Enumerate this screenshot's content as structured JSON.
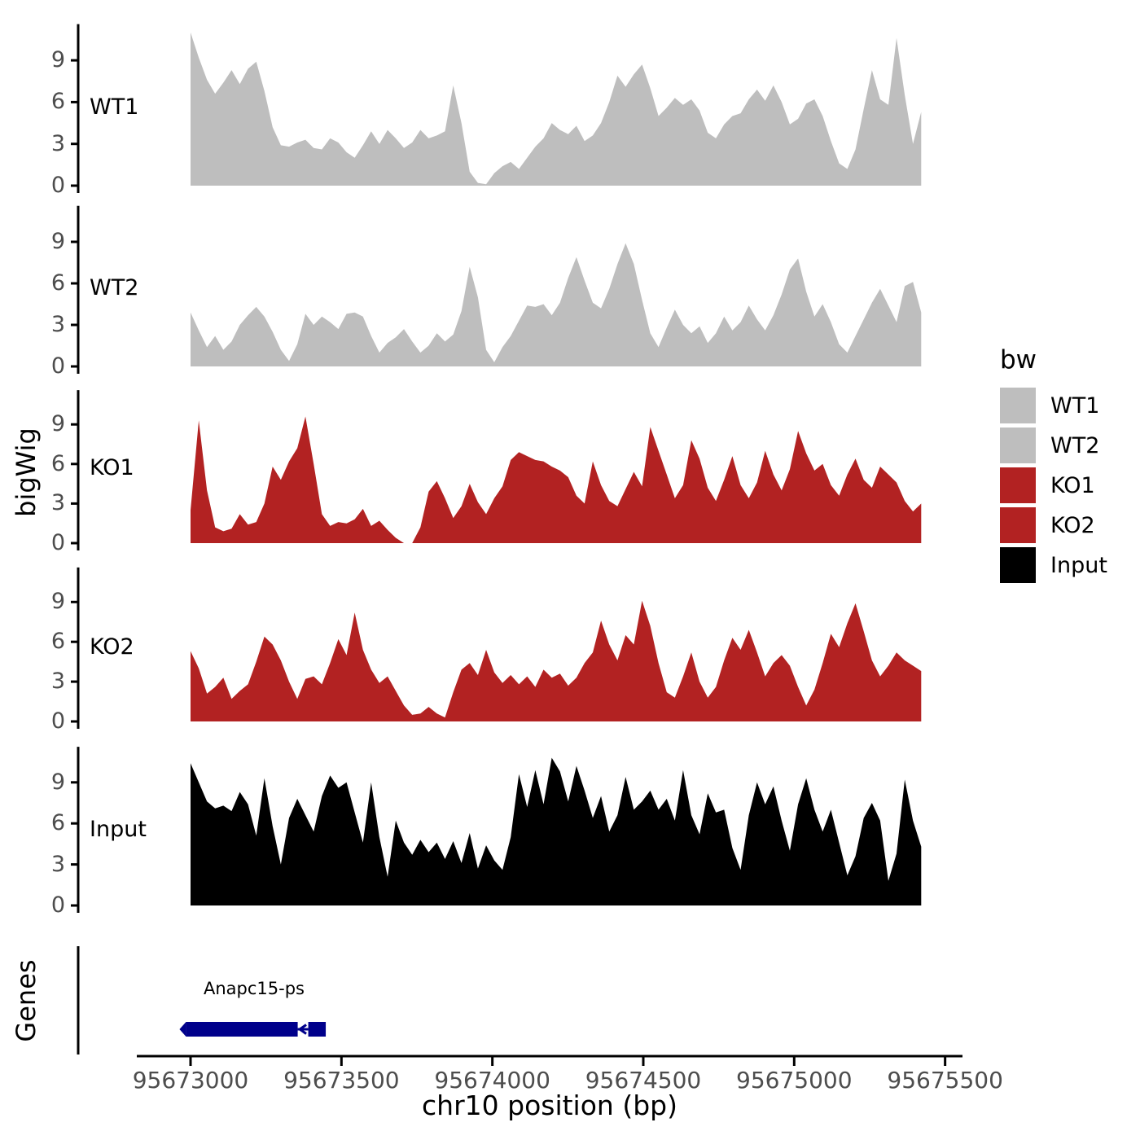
{
  "axes": {
    "y_title": "bigWig",
    "genes_title": "Genes",
    "x_title": "chr10 position (bp)",
    "y_ticks": [
      0,
      3,
      6,
      9
    ],
    "x_ticks_bp": [
      95673000,
      95673500,
      95674000,
      95674500,
      95675000,
      95675500
    ],
    "x_tick_labels": [
      "95673000",
      "95673500",
      "95674000",
      "95674500",
      "95675000",
      "95675500"
    ],
    "axis_line_color": "#000000",
    "tick_text_color": "#4d4d4d"
  },
  "legend": {
    "title": "bw",
    "entries": [
      {
        "label": "WT1",
        "color": "#BEBEBE"
      },
      {
        "label": "WT2",
        "color": "#BEBEBE"
      },
      {
        "label": "KO1",
        "color": "#B22222"
      },
      {
        "label": "KO2",
        "color": "#B22222"
      },
      {
        "label": "Input",
        "color": "#000000"
      }
    ]
  },
  "chart_data": {
    "type": "area",
    "title": "",
    "xlabel": "chr10 position (bp)",
    "ylabel": "bigWig",
    "x_start_bp": 95673000,
    "x_step_bp": 27.2,
    "n_points": 90,
    "xlim_bp": [
      95672800,
      95675560
    ],
    "ylim_per_track": [
      0,
      11.6
    ],
    "y_ticks": [
      0,
      3,
      6,
      9
    ],
    "grid": false,
    "legend_position": "right",
    "series": [
      {
        "name": "WT1",
        "color": "#BEBEBE",
        "values": [
          11.0,
          9.2,
          7.6,
          6.6,
          7.4,
          8.3,
          7.3,
          8.4,
          8.9,
          6.8,
          4.2,
          2.9,
          2.8,
          3.1,
          3.3,
          2.7,
          2.6,
          3.4,
          3.1,
          2.4,
          2.0,
          2.9,
          3.9,
          3.0,
          4.0,
          3.4,
          2.7,
          3.1,
          4.0,
          3.4,
          3.6,
          3.9,
          7.2,
          4.5,
          1.0,
          0.2,
          0.1,
          0.9,
          1.4,
          1.7,
          1.2,
          2.0,
          2.8,
          3.4,
          4.5,
          4.0,
          3.7,
          4.3,
          3.2,
          3.6,
          4.5,
          6.0,
          7.9,
          7.1,
          8.0,
          8.7,
          7.0,
          5.0,
          5.6,
          6.3,
          5.8,
          6.2,
          5.4,
          3.8,
          3.4,
          4.4,
          5.0,
          5.2,
          6.2,
          6.9,
          6.1,
          7.2,
          6.0,
          4.4,
          4.8,
          5.9,
          6.2,
          5.0,
          3.2,
          1.6,
          1.2,
          2.6,
          5.5,
          8.3,
          6.2,
          5.8,
          10.6,
          6.5,
          3.0,
          5.3
        ]
      },
      {
        "name": "WT2",
        "color": "#BEBEBE",
        "values": [
          3.9,
          2.6,
          1.4,
          2.2,
          1.2,
          1.8,
          3.0,
          3.7,
          4.3,
          3.6,
          2.5,
          1.2,
          0.4,
          1.6,
          3.8,
          3.0,
          3.6,
          3.2,
          2.7,
          3.8,
          3.9,
          3.6,
          2.2,
          1.0,
          1.7,
          2.1,
          2.7,
          1.8,
          1.0,
          1.5,
          2.4,
          1.8,
          2.3,
          4.0,
          7.2,
          5.0,
          1.2,
          0.3,
          1.4,
          2.2,
          3.3,
          4.4,
          4.3,
          4.5,
          3.7,
          4.6,
          6.4,
          7.9,
          6.2,
          4.6,
          4.2,
          5.6,
          7.4,
          8.9,
          7.4,
          4.8,
          2.4,
          1.4,
          2.8,
          4.1,
          3.0,
          2.4,
          2.9,
          1.7,
          2.4,
          3.6,
          2.6,
          3.2,
          4.4,
          3.4,
          2.6,
          3.7,
          5.2,
          7.0,
          7.8,
          5.4,
          3.6,
          4.5,
          3.2,
          1.6,
          1.0,
          2.2,
          3.4,
          4.6,
          5.6,
          4.4,
          3.2,
          5.8,
          6.1,
          3.9
        ]
      },
      {
        "name": "KO1",
        "color": "#B22222",
        "values": [
          2.5,
          9.3,
          4.0,
          1.2,
          0.9,
          1.1,
          2.2,
          1.4,
          1.6,
          3.0,
          5.8,
          4.8,
          6.2,
          7.2,
          9.6,
          6.0,
          2.2,
          1.3,
          1.6,
          1.5,
          1.8,
          2.6,
          1.3,
          1.7,
          1.0,
          0.4,
          0.0,
          0.0,
          1.2,
          3.9,
          4.7,
          3.4,
          1.9,
          2.8,
          4.5,
          3.1,
          2.2,
          3.4,
          4.3,
          6.3,
          6.9,
          6.6,
          6.3,
          6.2,
          5.8,
          5.5,
          5.0,
          3.6,
          3.0,
          6.2,
          4.4,
          3.2,
          2.8,
          4.1,
          5.4,
          4.3,
          8.8,
          7.0,
          5.2,
          3.4,
          4.4,
          7.8,
          6.4,
          4.2,
          3.2,
          4.8,
          6.6,
          4.4,
          3.4,
          4.6,
          7.0,
          5.2,
          4.0,
          5.6,
          8.5,
          6.8,
          5.5,
          6.0,
          4.4,
          3.6,
          5.2,
          6.4,
          4.8,
          4.2,
          5.8,
          5.2,
          4.6,
          3.2,
          2.4,
          3.0
        ]
      },
      {
        "name": "KO2",
        "color": "#B22222",
        "values": [
          5.3,
          4.0,
          2.1,
          2.6,
          3.3,
          1.7,
          2.3,
          2.8,
          4.5,
          6.4,
          5.8,
          4.6,
          3.0,
          1.7,
          3.2,
          3.4,
          2.8,
          4.4,
          6.2,
          5.0,
          8.2,
          5.4,
          3.9,
          2.9,
          3.4,
          2.3,
          1.2,
          0.5,
          0.6,
          1.1,
          0.6,
          0.3,
          2.2,
          3.9,
          4.4,
          3.5,
          5.4,
          3.7,
          2.9,
          3.5,
          2.8,
          3.4,
          2.6,
          3.9,
          3.3,
          3.6,
          2.7,
          3.3,
          4.4,
          5.2,
          7.6,
          5.8,
          4.6,
          6.5,
          5.8,
          9.1,
          7.2,
          4.4,
          2.2,
          1.8,
          3.4,
          5.2,
          3.0,
          1.8,
          2.6,
          4.6,
          6.3,
          5.4,
          6.9,
          5.2,
          3.4,
          4.4,
          5.0,
          4.2,
          2.6,
          1.2,
          2.4,
          4.4,
          6.6,
          5.6,
          7.4,
          8.9,
          6.8,
          4.6,
          3.4,
          4.2,
          5.2,
          4.6,
          4.2,
          3.8
        ]
      },
      {
        "name": "Input",
        "color": "#000000",
        "values": [
          10.4,
          9.0,
          7.6,
          7.1,
          7.3,
          6.9,
          8.3,
          7.4,
          5.1,
          9.3,
          5.8,
          3.0,
          6.4,
          7.8,
          6.6,
          5.4,
          8.0,
          9.5,
          8.6,
          9.0,
          6.8,
          4.6,
          9.0,
          5.0,
          2.1,
          6.2,
          4.6,
          3.7,
          4.8,
          3.9,
          4.6,
          3.4,
          4.7,
          3.1,
          5.3,
          2.7,
          4.4,
          3.3,
          2.6,
          5.0,
          9.6,
          7.2,
          9.9,
          7.4,
          10.8,
          9.8,
          7.6,
          10.2,
          8.4,
          6.4,
          8.0,
          5.4,
          6.6,
          9.4,
          7.0,
          7.6,
          8.4,
          7.0,
          7.8,
          6.2,
          9.9,
          6.6,
          5.2,
          8.2,
          6.8,
          7.0,
          4.2,
          2.6,
          6.6,
          9.0,
          7.4,
          8.7,
          6.2,
          4.0,
          7.4,
          9.3,
          7.0,
          5.4,
          7.0,
          4.6,
          2.2,
          3.6,
          6.4,
          7.5,
          6.2,
          1.8,
          3.8,
          9.2,
          6.2,
          4.3
        ]
      }
    ],
    "genes_track": {
      "gene": {
        "name": "Anapc15-ps",
        "strand": "-",
        "color": "#00008B",
        "exons_bp": [
          {
            "start": 95672985,
            "end": 95673355
          },
          {
            "start": 95673390,
            "end": 95673448
          }
        ]
      }
    }
  }
}
